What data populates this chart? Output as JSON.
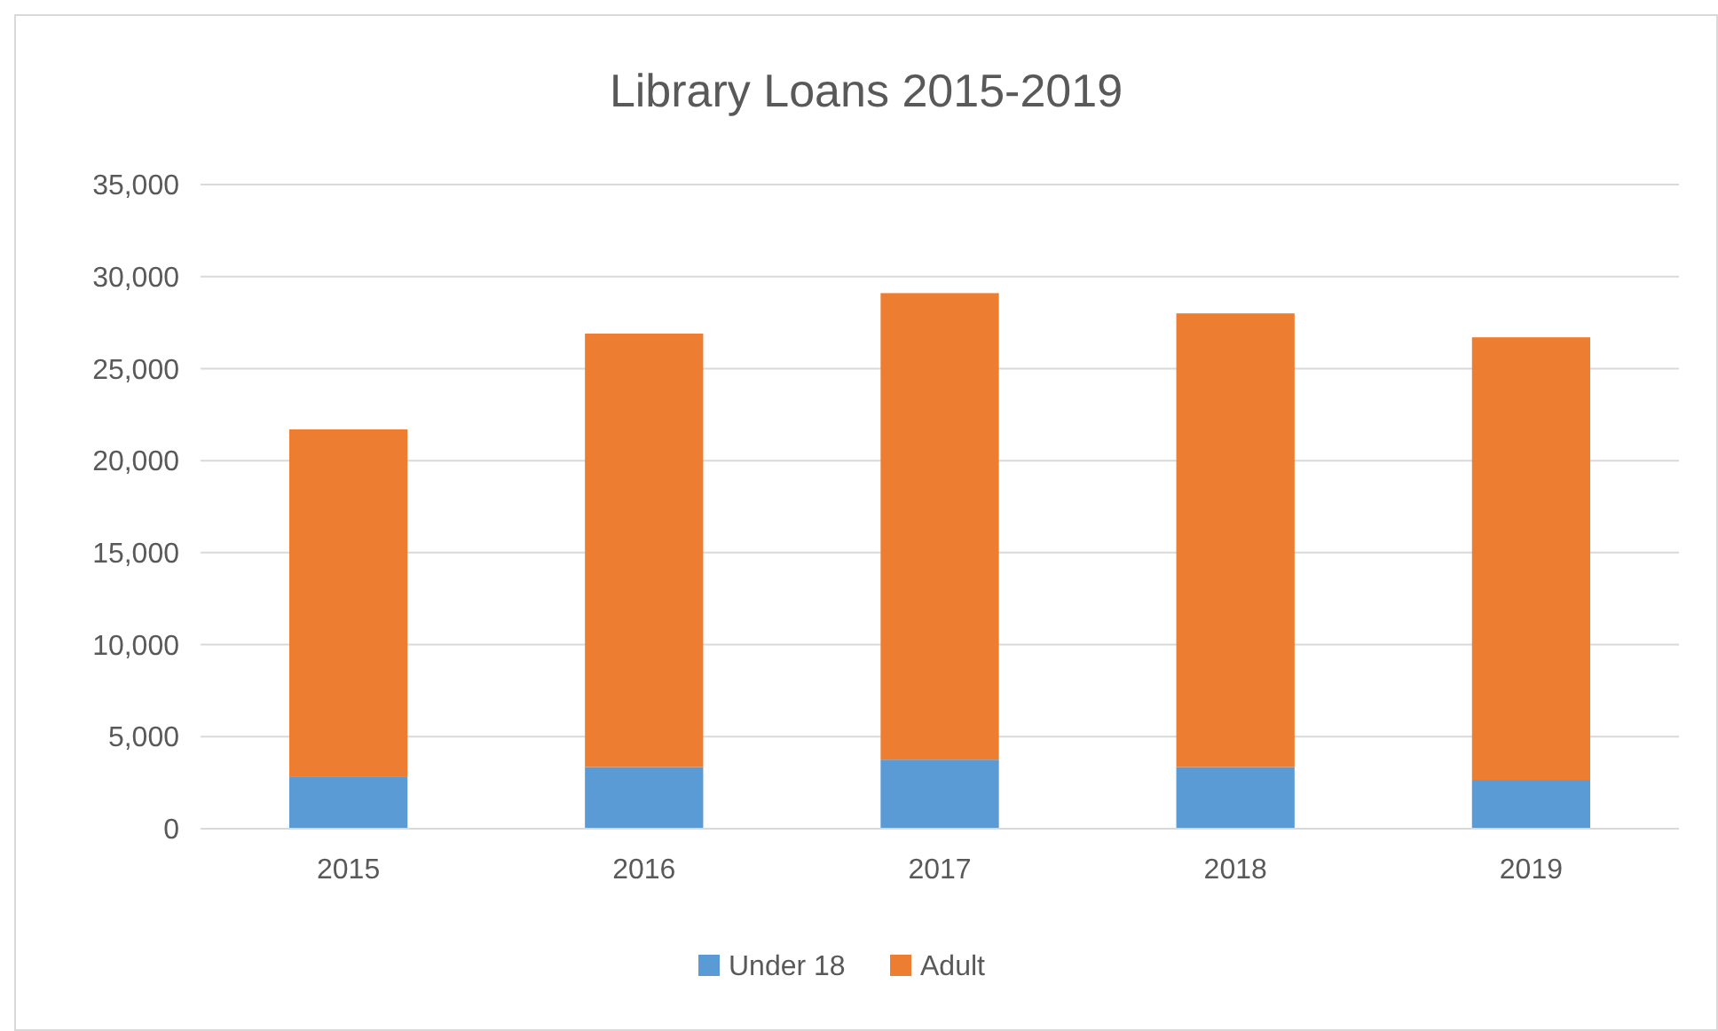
{
  "chart_data": {
    "type": "bar",
    "title": "Library Loans 2015-2019",
    "categories": [
      "2015",
      "2016",
      "2017",
      "2018",
      "2019"
    ],
    "stacked": true,
    "series": [
      {
        "name": "Under 18",
        "color": "#5b9bd5",
        "values": [
          2800,
          3350,
          3750,
          3350,
          2650
        ]
      },
      {
        "name": "Adult",
        "color": "#ed7d31",
        "values": [
          18900,
          23550,
          25350,
          24650,
          24050
        ]
      }
    ],
    "ylim": [
      0,
      35000
    ],
    "yticks": [
      {
        "value": 0,
        "label": "0"
      },
      {
        "value": 5000,
        "label": "5,000"
      },
      {
        "value": 10000,
        "label": "10,000"
      },
      {
        "value": 15000,
        "label": "15,000"
      },
      {
        "value": 20000,
        "label": "20,000"
      },
      {
        "value": 25000,
        "label": "25,000"
      },
      {
        "value": 30000,
        "label": "30,000"
      },
      {
        "value": 35000,
        "label": "35,000"
      }
    ],
    "grid": "y",
    "legend": "bottom"
  }
}
